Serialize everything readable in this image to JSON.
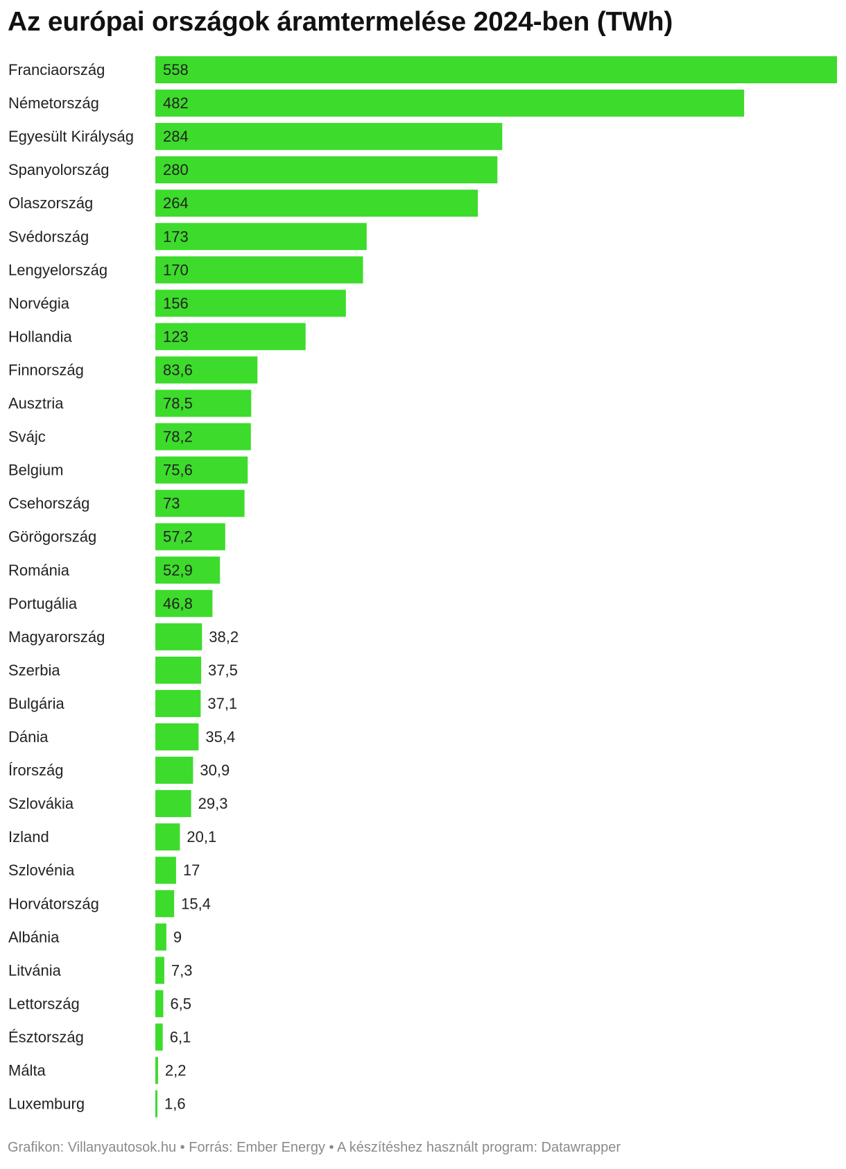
{
  "chart_data": {
    "type": "bar",
    "orientation": "horizontal",
    "title": "Az európai országok áramtermelése 2024-ben (TWh)",
    "categories": [
      "Franciaország",
      "Németország",
      "Egyesült Királyság",
      "Spanyolország",
      "Olaszország",
      "Svédország",
      "Lengyelország",
      "Norvégia",
      "Hollandia",
      "Finnország",
      "Ausztria",
      "Svájc",
      "Belgium",
      "Csehország",
      "Görögország",
      "Románia",
      "Portugália",
      "Magyarország",
      "Szerbia",
      "Bulgária",
      "Dánia",
      "Írország",
      "Szlovákia",
      "Izland",
      "Szlovénia",
      "Horvátország",
      "Albánia",
      "Litvánia",
      "Lettország",
      "Észtország",
      "Málta",
      "Luxemburg"
    ],
    "values": [
      558,
      482,
      284,
      280,
      264,
      173,
      170,
      156,
      123,
      83.6,
      78.5,
      78.2,
      75.6,
      73,
      57.2,
      52.9,
      46.8,
      38.2,
      37.5,
      37.1,
      35.4,
      30.9,
      29.3,
      20.1,
      17,
      15.4,
      9,
      7.3,
      6.5,
      6.1,
      2.2,
      1.6
    ],
    "value_labels": [
      "558",
      "482",
      "284",
      "280",
      "264",
      "173",
      "170",
      "156",
      "123",
      "83,6",
      "78,5",
      "78,2",
      "75,6",
      "73",
      "57,2",
      "52,9",
      "46,8",
      "38,2",
      "37,5",
      "37,1",
      "35,4",
      "30,9",
      "29,3",
      "20,1",
      "17",
      "15,4",
      "9",
      "7,3",
      "6,5",
      "6,1",
      "2,2",
      "1,6"
    ],
    "xlim": [
      0,
      558
    ],
    "grid": false,
    "bar_color": "#3ddb2c"
  },
  "footer": "Grafikon: Villanyautosok.hu • Forrás: Ember Energy • A készítéshez használt program: Datawrapper"
}
